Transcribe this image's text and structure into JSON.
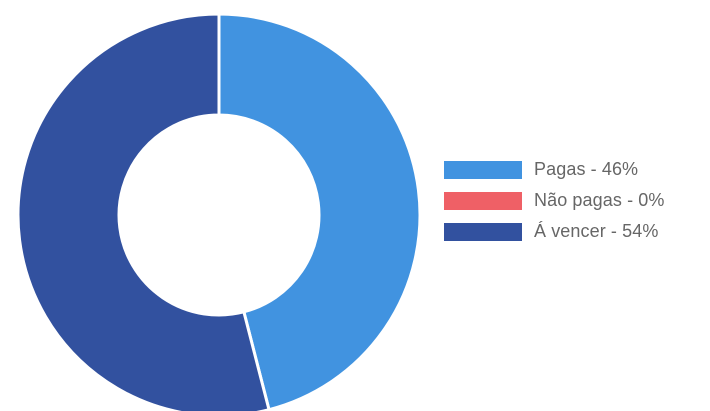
{
  "chart_data": {
    "type": "pie",
    "variant": "donut",
    "categories": [
      "Pagas",
      "Não pagas",
      "Á vencer"
    ],
    "values": [
      46,
      0,
      54
    ],
    "unit": "%",
    "colors": [
      "#4193e0",
      "#ef6066",
      "#32519f"
    ],
    "legend_position": "right",
    "legend_labels": [
      "Pagas - 46%",
      "Não pagas - 0%",
      "Á vencer - 54%"
    ],
    "start_angle_deg": 0,
    "direction": "clockwise"
  }
}
